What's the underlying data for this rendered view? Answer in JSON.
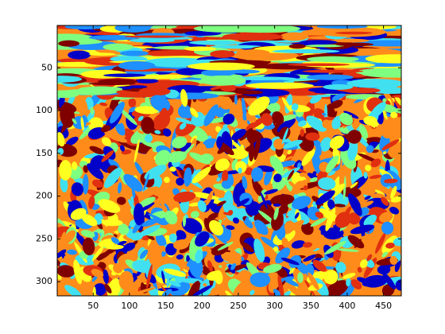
{
  "chart_data": {
    "type": "image",
    "xlim": [
      0.5,
      474.5
    ],
    "xticks": [
      50,
      100,
      150,
      200,
      250,
      300,
      350,
      400,
      450
    ],
    "ylim": [
      0.5,
      316.5
    ],
    "yticks": [
      50,
      100,
      150,
      200,
      250,
      300
    ],
    "ydir": "reverse",
    "colormap": [
      "#0000c8",
      "#1e90ff",
      "#40e0f0",
      "#7fff80",
      "#ffff20",
      "#ff8c1a",
      "#e03010",
      "#800000"
    ]
  }
}
